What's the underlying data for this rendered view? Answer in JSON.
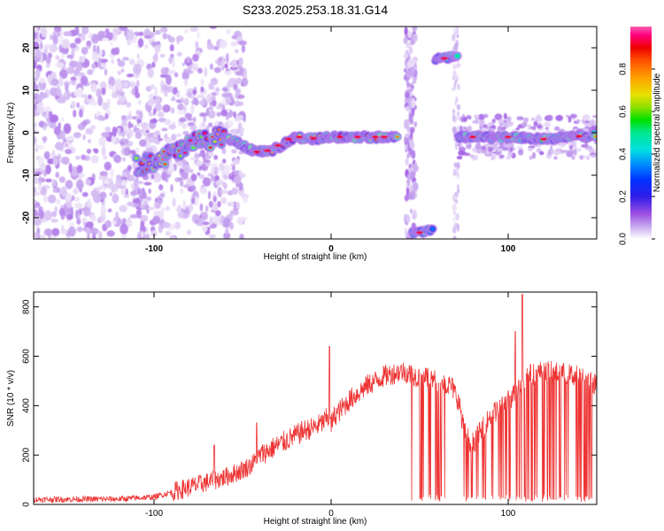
{
  "page_title": "S233.2025.253.18.31.G14",
  "colors": {
    "snr_line": "#ee3333",
    "colormap": [
      "#ffffff",
      "#e6d7f7",
      "#c7a6ef",
      "#9a4de3",
      "#6f06d0",
      "#2e1de8",
      "#0032ff",
      "#008cff",
      "#00e0e0",
      "#00e890",
      "#00e000",
      "#90e000",
      "#e8e000",
      "#ffa000",
      "#ff5000",
      "#ee0000",
      "#ff0080",
      "#ff60b0"
    ]
  },
  "chart_data": [
    {
      "type": "heatmap",
      "title": "S233.2025.253.18.31.G14",
      "xlabel": "Height of straight line (km)",
      "ylabel": "Frequency (Hz)",
      "xlim": [
        -168,
        150
      ],
      "ylim": [
        -25,
        25
      ],
      "xticks": [
        -100,
        0,
        100
      ],
      "yticks": [
        -20,
        -10,
        0,
        10,
        20
      ],
      "colorbar": {
        "label": "Normalized spectral amplitude",
        "range": [
          0,
          1
        ],
        "ticks": [
          0.0,
          0.2,
          0.4,
          0.6,
          0.8
        ]
      },
      "ridge_segments": [
        {
          "x": [
            -110,
            -90,
            -75,
            -60,
            -50,
            -42,
            -35,
            -28,
            -20,
            -10,
            0,
            20,
            38
          ],
          "y": [
            -8,
            -5,
            -2,
            -1,
            -3,
            -4.5,
            -4.5,
            -3,
            -1,
            -1.5,
            -1,
            -1,
            -1.2
          ],
          "amp": 0.9
        },
        {
          "x": [
            72,
            80,
            90,
            100,
            110,
            120,
            130,
            140,
            150
          ],
          "y": [
            -1,
            -1,
            -1,
            -1,
            -1.2,
            -1.5,
            -1.2,
            -0.8,
            -0.6
          ],
          "amp": 0.75
        },
        {
          "x": [
            59,
            64,
            68,
            72
          ],
          "y": [
            17.5,
            17.5,
            18,
            18
          ],
          "amp": 0.6
        },
        {
          "x": [
            46,
            50,
            54,
            58
          ],
          "y": [
            -23.5,
            -23.5,
            -23,
            -23
          ],
          "amp": 0.55
        }
      ]
    },
    {
      "type": "line",
      "xlabel": "Height of straight line (km)",
      "ylabel": "SNR (10 * v/v)",
      "xlim": [
        -168,
        150
      ],
      "ylim": [
        0,
        860
      ],
      "xticks": [
        -100,
        0,
        100
      ],
      "yticks": [
        0,
        200,
        400,
        600,
        800
      ],
      "series": [
        {
          "profile_x": [
            -168,
            -120,
            -100,
            -90,
            -80,
            -70,
            -60,
            -50,
            -45,
            -40,
            -35,
            -30,
            -25,
            -20,
            -15,
            -10,
            -5,
            -2,
            0,
            2,
            5,
            10,
            20,
            30,
            40,
            44,
            48,
            60,
            68,
            70,
            72,
            75,
            78,
            80,
            85,
            90,
            100,
            105,
            108,
            110,
            120,
            130,
            140,
            150
          ],
          "profile_y": [
            20,
            22,
            30,
            50,
            70,
            90,
            110,
            140,
            160,
            200,
            220,
            240,
            260,
            280,
            300,
            310,
            330,
            350,
            320,
            360,
            380,
            420,
            480,
            520,
            540,
            530,
            520,
            500,
            480,
            450,
            420,
            300,
            260,
            250,
            300,
            360,
            420,
            460,
            500,
            520,
            540,
            530,
            520,
            480
          ],
          "spikes": [
            {
              "x": -66,
              "y": 240
            },
            {
              "x": -42,
              "y": 330
            },
            {
              "x": -1,
              "y": 640
            },
            {
              "x": 104,
              "y": 700
            },
            {
              "x": 108,
              "y": 850
            }
          ],
          "dropout_ranges": [
            [
              45,
              65
            ],
            [
              72,
              90
            ],
            [
              90,
              148
            ]
          ]
        }
      ]
    }
  ]
}
